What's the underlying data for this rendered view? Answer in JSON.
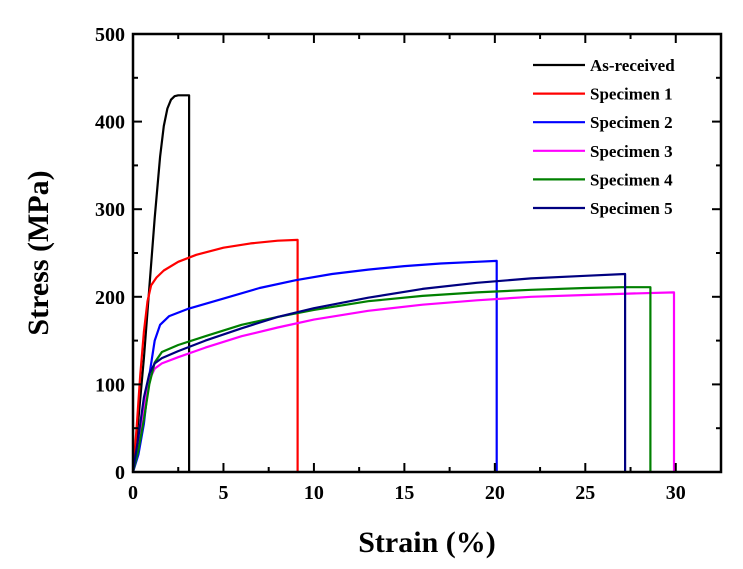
{
  "chart_data": {
    "type": "line",
    "title": "",
    "xlabel": "Strain (%)",
    "ylabel": "Stress (MPa)",
    "xlim": [
      0,
      32.5
    ],
    "ylim": [
      0,
      500
    ],
    "xticks": [
      0,
      5,
      10,
      15,
      20,
      25,
      30
    ],
    "xticks_labels": [
      "0",
      "5",
      "10",
      "15",
      "20",
      "25",
      "30"
    ],
    "yticks": [
      0,
      100,
      200,
      300,
      400,
      500
    ],
    "yticks_labels": [
      "0",
      "100",
      "200",
      "300",
      "400",
      "500"
    ],
    "grid": false,
    "legend_position": "top-right",
    "series": [
      {
        "name": "As-received",
        "color": "#000000",
        "x": [
          0,
          0.3,
          0.6,
          0.9,
          1.2,
          1.5,
          1.7,
          1.9,
          2.1,
          2.3,
          2.5,
          2.8,
          3.1,
          3.1
        ],
        "y": [
          0,
          60,
          130,
          210,
          290,
          360,
          395,
          415,
          425,
          429,
          430,
          430,
          430,
          0
        ]
      },
      {
        "name": "Specimen 1",
        "color": "#ff0000",
        "x": [
          0,
          0.2,
          0.4,
          0.6,
          0.8,
          1.0,
          1.3,
          1.7,
          2.5,
          3.5,
          5,
          6.5,
          8,
          9.1,
          9.1
        ],
        "y": [
          0,
          50,
          110,
          160,
          195,
          213,
          222,
          230,
          240,
          248,
          256,
          261,
          264,
          265,
          0
        ]
      },
      {
        "name": "Specimen 2",
        "color": "#0000ff",
        "x": [
          0,
          0.3,
          0.6,
          0.9,
          1.2,
          1.5,
          2,
          3,
          5,
          7,
          9,
          11,
          13,
          15,
          17,
          19,
          20.1,
          20.1
        ],
        "y": [
          0,
          20,
          55,
          110,
          150,
          168,
          178,
          186,
          198,
          210,
          219,
          226,
          231,
          235,
          238,
          240,
          241,
          0
        ]
      },
      {
        "name": "Specimen 3",
        "color": "#ff00ff",
        "x": [
          0,
          0.3,
          0.6,
          0.9,
          1.2,
          1.6,
          2.5,
          4,
          6,
          8,
          10,
          13,
          16,
          19,
          22,
          25,
          28,
          29.9,
          29.9
        ],
        "y": [
          0,
          35,
          75,
          105,
          118,
          124,
          131,
          142,
          155,
          165,
          174,
          184,
          191,
          196,
          200,
          202,
          204,
          205,
          0
        ]
      },
      {
        "name": "Specimen 4",
        "color": "#008000",
        "x": [
          0,
          0.3,
          0.6,
          0.9,
          1.2,
          1.6,
          2.5,
          4,
          6,
          8,
          10,
          13,
          16,
          19,
          22,
          25,
          27,
          28.6,
          28.6
        ],
        "y": [
          0,
          25,
          60,
          100,
          125,
          137,
          145,
          155,
          168,
          177,
          185,
          195,
          201,
          205,
          208,
          210,
          211,
          211,
          0
        ]
      },
      {
        "name": "Specimen 5",
        "color": "#000080",
        "x": [
          0,
          0.3,
          0.6,
          0.9,
          1.2,
          1.6,
          2.5,
          4,
          6,
          8,
          10,
          13,
          16,
          19,
          22,
          25,
          27.2,
          27.2
        ],
        "y": [
          0,
          40,
          85,
          112,
          124,
          130,
          138,
          150,
          164,
          177,
          187,
          199,
          209,
          216,
          221,
          224,
          226,
          0
        ]
      }
    ]
  }
}
